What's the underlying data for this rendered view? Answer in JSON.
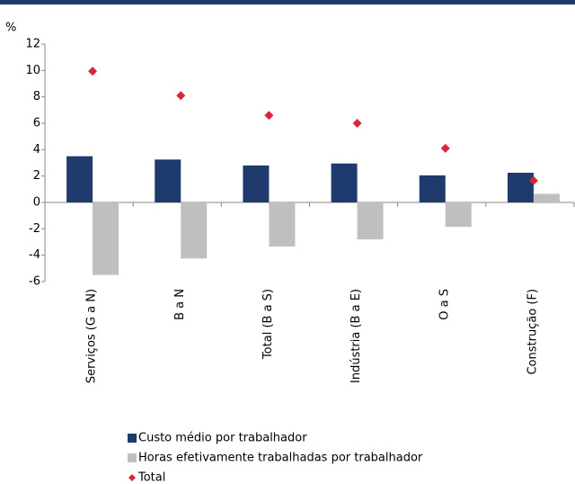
{
  "chart_data": {
    "type": "bar",
    "y_unit_label": "%",
    "categories": [
      "Serviços (G a N)",
      "B a N",
      "Total (B a S)",
      "Indústria (B a E)",
      "O a S",
      "Construção (F)"
    ],
    "series": [
      {
        "name": "Custo médio por trabalhador",
        "color": "#1f3b6e",
        "marker": "bar",
        "values": [
          3.5,
          3.25,
          2.8,
          2.95,
          2.05,
          2.25
        ]
      },
      {
        "name": "Horas efetivamente trabalhadas por trabalhador",
        "color": "#bfbfbf",
        "marker": "bar",
        "values": [
          -5.5,
          -4.25,
          -3.35,
          -2.8,
          -1.85,
          0.65
        ]
      },
      {
        "name": "Total",
        "color": "#d9253a",
        "marker": "diamond",
        "values": [
          9.95,
          8.1,
          6.6,
          6.0,
          4.1,
          1.65
        ]
      }
    ],
    "ylim": [
      -6,
      12
    ],
    "yticks": [
      -6,
      -4,
      -2,
      0,
      2,
      4,
      6,
      8,
      10,
      12
    ],
    "grid": false
  }
}
